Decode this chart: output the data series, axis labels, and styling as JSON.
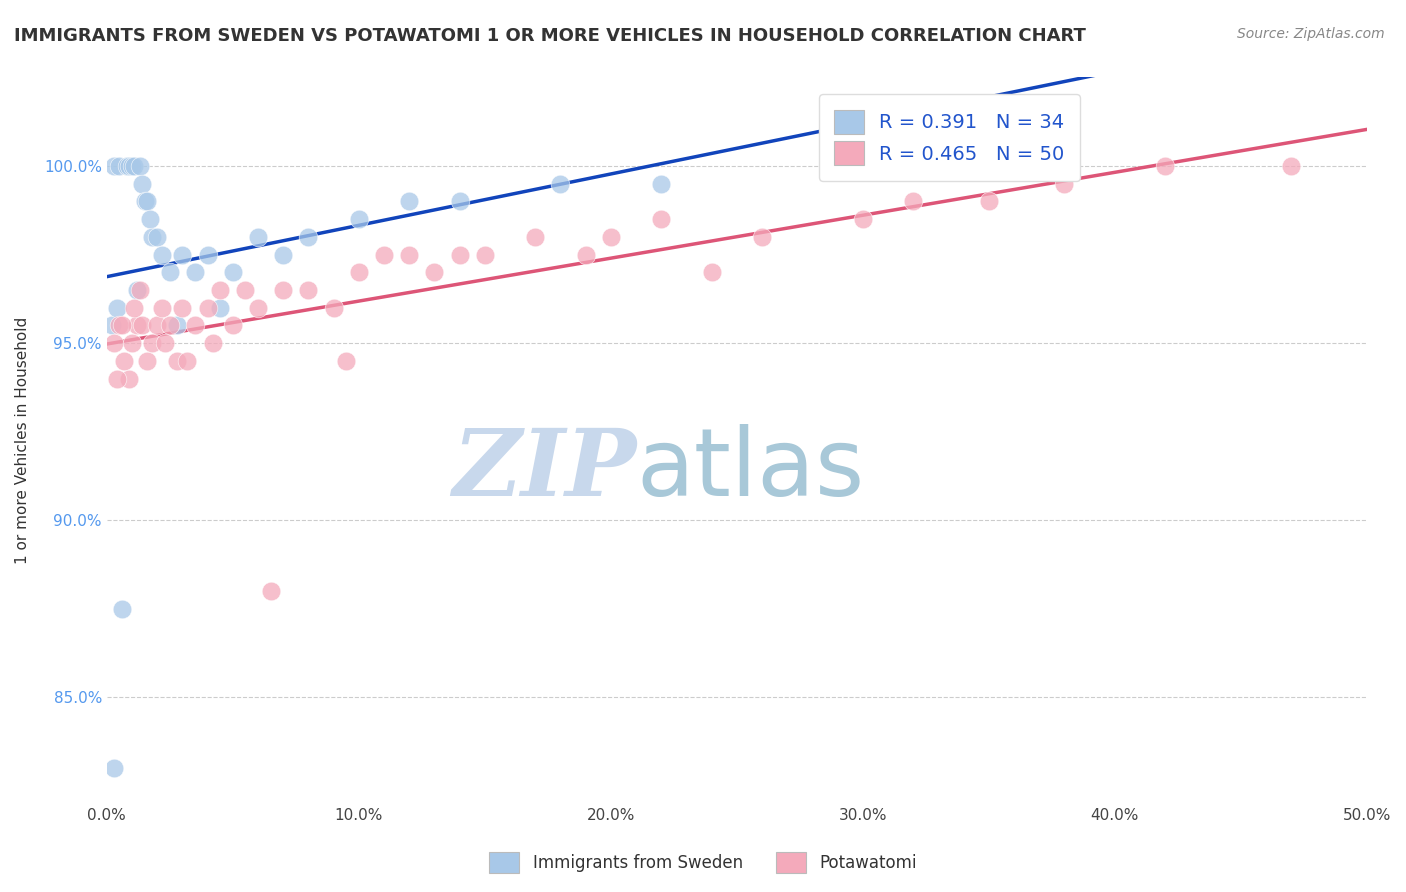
{
  "title": "IMMIGRANTS FROM SWEDEN VS POTAWATOMI 1 OR MORE VEHICLES IN HOUSEHOLD CORRELATION CHART",
  "source_text": "Source: ZipAtlas.com",
  "ylabel": "1 or more Vehicles in Household",
  "xmin": 0.0,
  "xmax": 50.0,
  "ymin": 82.0,
  "ymax": 102.5,
  "yticks": [
    85.0,
    90.0,
    95.0,
    100.0
  ],
  "ytick_labels": [
    "85.0%",
    "90.0%",
    "95.0%",
    "100.0%"
  ],
  "xticks": [
    0.0,
    10.0,
    20.0,
    30.0,
    40.0,
    50.0
  ],
  "xtick_labels": [
    "0.0%",
    "10.0%",
    "20.0%",
    "30.0%",
    "40.0%",
    "50.0%"
  ],
  "legend_labels": [
    "Immigrants from Sweden",
    "Potawatomi"
  ],
  "R_sweden": 0.391,
  "N_sweden": 34,
  "R_potawatomi": 0.465,
  "N_potawatomi": 50,
  "color_sweden": "#A8C8E8",
  "color_potawatomi": "#F4AABB",
  "line_color_sweden": "#1144BB",
  "line_color_potawatomi": "#DD5577",
  "watermark_zip": "ZIP",
  "watermark_atlas": "atlas",
  "watermark_color_zip": "#C8D8EC",
  "watermark_color_atlas": "#A8C8D8",
  "sweden_x": [
    0.3,
    0.5,
    0.8,
    0.9,
    1.0,
    1.1,
    1.3,
    1.4,
    1.5,
    1.6,
    1.7,
    1.8,
    2.0,
    2.2,
    2.5,
    3.0,
    3.5,
    4.0,
    5.0,
    6.0,
    7.0,
    8.0,
    10.0,
    12.0,
    14.0,
    18.0,
    22.0,
    0.2,
    0.4,
    1.2,
    2.8,
    4.5,
    0.6,
    0.3
  ],
  "sweden_y": [
    100.0,
    100.0,
    100.0,
    100.0,
    100.0,
    100.0,
    100.0,
    99.5,
    99.0,
    99.0,
    98.5,
    98.0,
    98.0,
    97.5,
    97.0,
    97.5,
    97.0,
    97.5,
    97.0,
    98.0,
    97.5,
    98.0,
    98.5,
    99.0,
    99.0,
    99.5,
    99.5,
    95.5,
    96.0,
    96.5,
    95.5,
    96.0,
    87.5,
    83.0
  ],
  "potawatomi_x": [
    0.3,
    0.5,
    0.7,
    0.9,
    1.0,
    1.2,
    1.4,
    1.6,
    1.8,
    2.0,
    2.2,
    2.5,
    2.8,
    3.0,
    3.5,
    4.0,
    4.5,
    5.0,
    5.5,
    6.0,
    7.0,
    8.0,
    9.0,
    10.0,
    11.0,
    12.0,
    13.0,
    14.0,
    15.0,
    17.0,
    19.0,
    20.0,
    22.0,
    24.0,
    26.0,
    30.0,
    32.0,
    35.0,
    38.0,
    42.0,
    47.0,
    0.4,
    0.6,
    1.1,
    1.3,
    2.3,
    3.2,
    4.2,
    6.5,
    9.5
  ],
  "potawatomi_y": [
    95.0,
    95.5,
    94.5,
    94.0,
    95.0,
    95.5,
    95.5,
    94.5,
    95.0,
    95.5,
    96.0,
    95.5,
    94.5,
    96.0,
    95.5,
    96.0,
    96.5,
    95.5,
    96.5,
    96.0,
    96.5,
    96.5,
    96.0,
    97.0,
    97.5,
    97.5,
    97.0,
    97.5,
    97.5,
    98.0,
    97.5,
    98.0,
    98.5,
    97.0,
    98.0,
    98.5,
    99.0,
    99.0,
    99.5,
    100.0,
    100.0,
    94.0,
    95.5,
    96.0,
    96.5,
    95.0,
    94.5,
    95.0,
    88.0,
    94.5
  ]
}
